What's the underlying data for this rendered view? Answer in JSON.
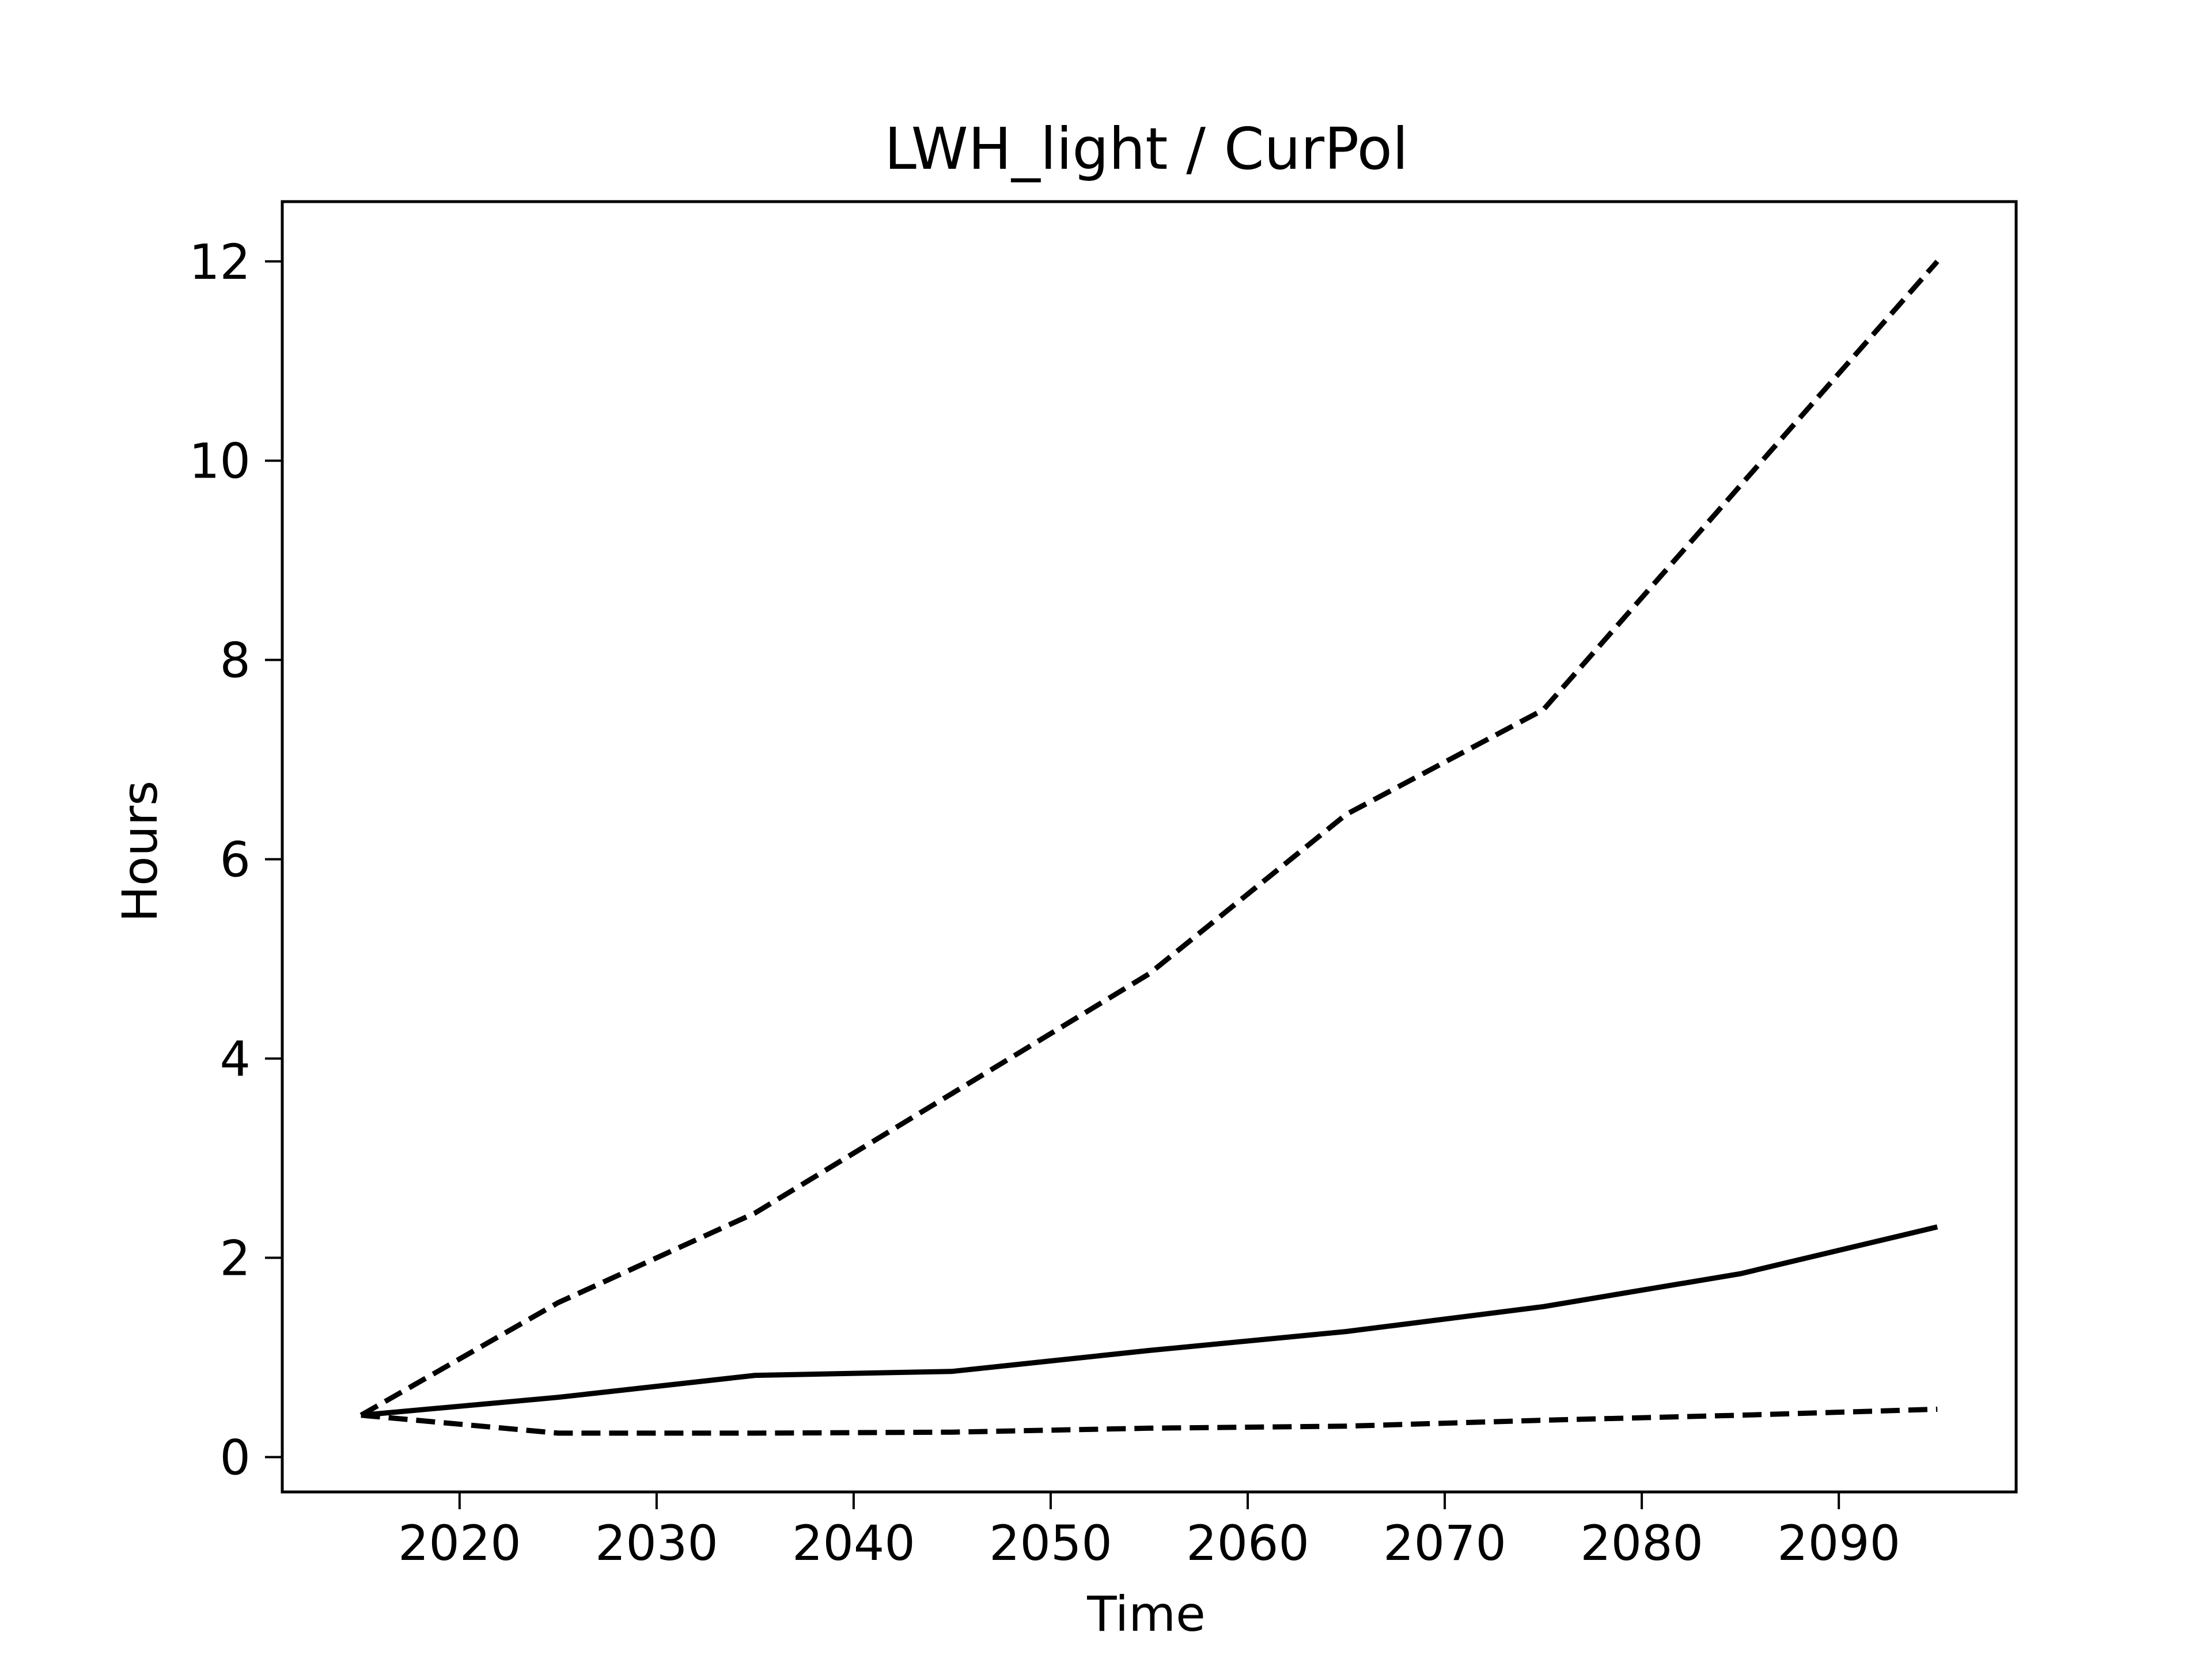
{
  "chart_data": {
    "type": "line",
    "title": "LWH_light / CurPol",
    "xlabel": "Time",
    "ylabel": "Hours",
    "xlim": [
      2011,
      2099
    ],
    "ylim": [
      -0.35,
      12.6
    ],
    "x_ticks": [
      2020,
      2030,
      2040,
      2050,
      2060,
      2070,
      2080,
      2090
    ],
    "y_ticks": [
      0,
      2,
      4,
      6,
      8,
      10,
      12
    ],
    "grid": false,
    "legend": "none",
    "x": [
      2015,
      2025,
      2035,
      2045,
      2055,
      2065,
      2075,
      2085,
      2095
    ],
    "series": [
      {
        "style": "dashed",
        "color": "#000000",
        "values": [
          0.42,
          1.55,
          2.45,
          3.65,
          4.85,
          6.45,
          7.5,
          9.75,
          12.0
        ]
      },
      {
        "style": "solid",
        "color": "#000000",
        "values": [
          0.42,
          0.6,
          0.82,
          0.86,
          1.07,
          1.26,
          1.51,
          1.84,
          2.31
        ]
      },
      {
        "style": "dashed",
        "color": "#000000",
        "values": [
          0.42,
          0.24,
          0.24,
          0.25,
          0.29,
          0.31,
          0.37,
          0.42,
          0.48
        ]
      }
    ]
  }
}
